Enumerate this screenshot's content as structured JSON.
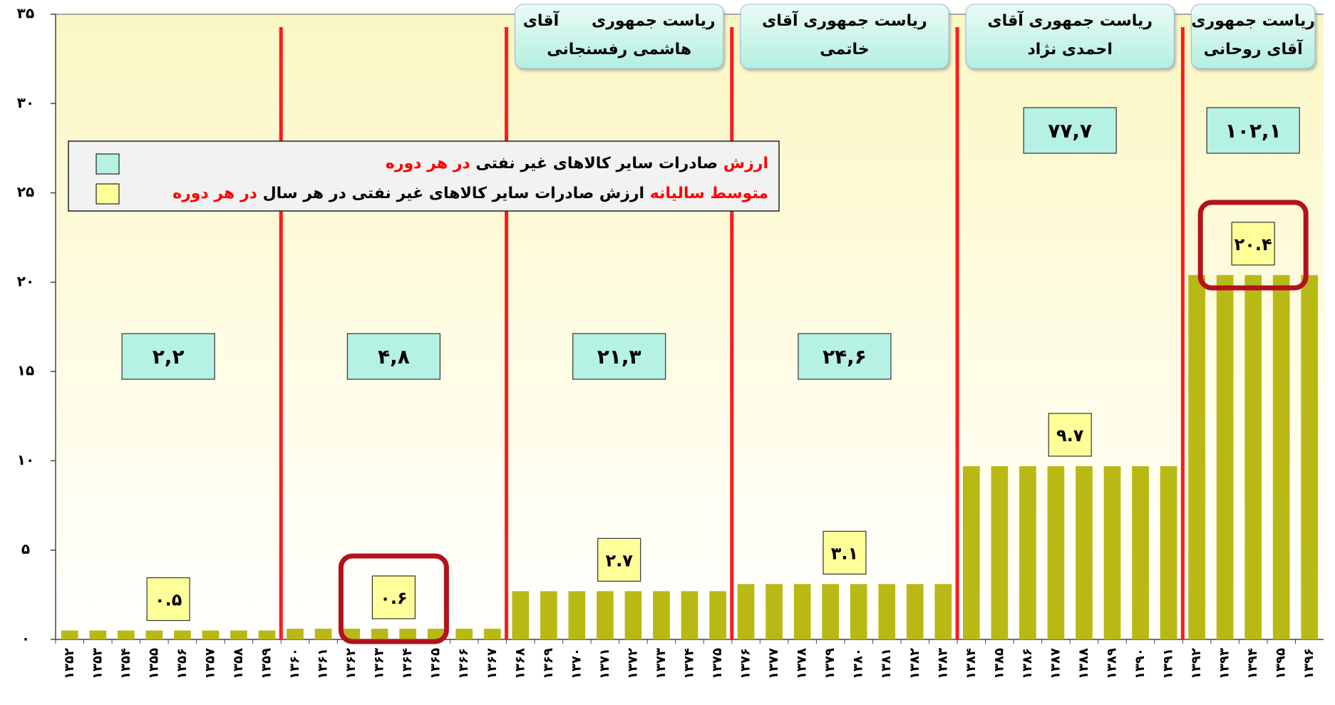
{
  "chart_data": {
    "type": "bar",
    "categories": [
      "۱۳۵۲",
      "۱۳۵۳",
      "۱۳۵۴",
      "۱۳۵۵",
      "۱۳۵۶",
      "۱۳۵۷",
      "۱۳۵۸",
      "۱۳۵۹",
      "۱۳۶۰",
      "۱۳۶۱",
      "۱۳۶۲",
      "۱۳۶۳",
      "۱۳۶۴",
      "۱۳۶۵",
      "۱۳۶۶",
      "۱۳۶۷",
      "۱۳۶۸",
      "۱۳۶۹",
      "۱۳۷۰",
      "۱۳۷۱",
      "۱۳۷۲",
      "۱۳۷۳",
      "۱۳۷۴",
      "۱۳۷۵",
      "۱۳۷۶",
      "۱۳۷۷",
      "۱۳۷۸",
      "۱۳۷۹",
      "۱۳۸۰",
      "۱۳۸۱",
      "۱۳۸۲",
      "۱۳۸۳",
      "۱۳۸۴",
      "۱۳۸۵",
      "۱۳۸۶",
      "۱۳۸۷",
      "۱۳۸۸",
      "۱۳۸۹",
      "۱۳۹۰",
      "۱۳۹۱",
      "۱۳۹۲",
      "۱۳۹۳",
      "۱۳۹۴",
      "۱۳۹۵",
      "۱۳۹۶"
    ],
    "values": [
      0.5,
      0.5,
      0.5,
      0.5,
      0.5,
      0.5,
      0.5,
      0.5,
      0.6,
      0.6,
      0.6,
      0.6,
      0.6,
      0.6,
      0.6,
      0.6,
      2.7,
      2.7,
      2.7,
      2.7,
      2.7,
      2.7,
      2.7,
      2.7,
      3.1,
      3.1,
      3.1,
      3.1,
      3.1,
      3.1,
      3.1,
      3.1,
      9.7,
      9.7,
      9.7,
      9.7,
      9.7,
      9.7,
      9.7,
      9.7,
      20.4,
      20.4,
      20.4,
      20.4,
      20.4
    ],
    "color": "#b9b916",
    "ylim": [
      0,
      35
    ],
    "yticks": [
      {
        "value": 0,
        "label": "۰"
      },
      {
        "value": 5,
        "label": "۵"
      },
      {
        "value": 10,
        "label": "۱۰"
      },
      {
        "value": 15,
        "label": "۱۵"
      },
      {
        "value": 20,
        "label": "۲۰"
      },
      {
        "value": 25,
        "label": "۲۵"
      },
      {
        "value": 30,
        "label": "۳۰"
      },
      {
        "value": 35,
        "label": "۳۵"
      }
    ],
    "divider_color": "#ff1a1a",
    "highlight_color": "#b3121b",
    "total_color": "#b6f2e4",
    "average_color": "#ffff99",
    "periods": [
      {
        "total": "۲,۲",
        "average": "۰.۵",
        "highlight": false
      },
      {
        "total": "۴,۸",
        "average": "۰.۶",
        "highlight": true
      },
      {
        "president": [
          "ریاست جمهوری      آقای",
          "هاشمی رفسنجانی"
        ],
        "total": "۲۱,۳",
        "average": "۲.۷",
        "highlight": false
      },
      {
        "president": [
          "ریاست جمهوری آقای",
          "خاتمی"
        ],
        "total": "۲۴,۶",
        "average": "۳.۱",
        "highlight": false
      },
      {
        "president": [
          "ریاست جمهوری آقای",
          "احمدی نژاد"
        ],
        "total": "۷۷,۷",
        "average": "۹.۷",
        "highlight": false
      },
      {
        "president": [
          "ریاست جمهوری",
          "آقای روحانی"
        ],
        "total": "۱۰۲,۱",
        "average": "۲۰.۴",
        "highlight": true
      }
    ],
    "legend": [
      {
        "color": "#b6f2e4",
        "parts": [
          {
            "text": "ارزش",
            "color": "#ff0000"
          },
          {
            "text": " صادرات سایر کالاهای غیر نفتی ",
            "color": "#000000"
          },
          {
            "text": "در هر دوره",
            "color": "#ff0000"
          }
        ]
      },
      {
        "color": "#ffff99",
        "parts": [
          {
            "text": "متوسط سالیانه",
            "color": "#ff0000"
          },
          {
            "text": " ارزش صادرات سایر کالاهای غیر نفتی در هر سال ",
            "color": "#000000"
          },
          {
            "text": "در هر دوره",
            "color": "#ff0000"
          }
        ]
      }
    ]
  }
}
